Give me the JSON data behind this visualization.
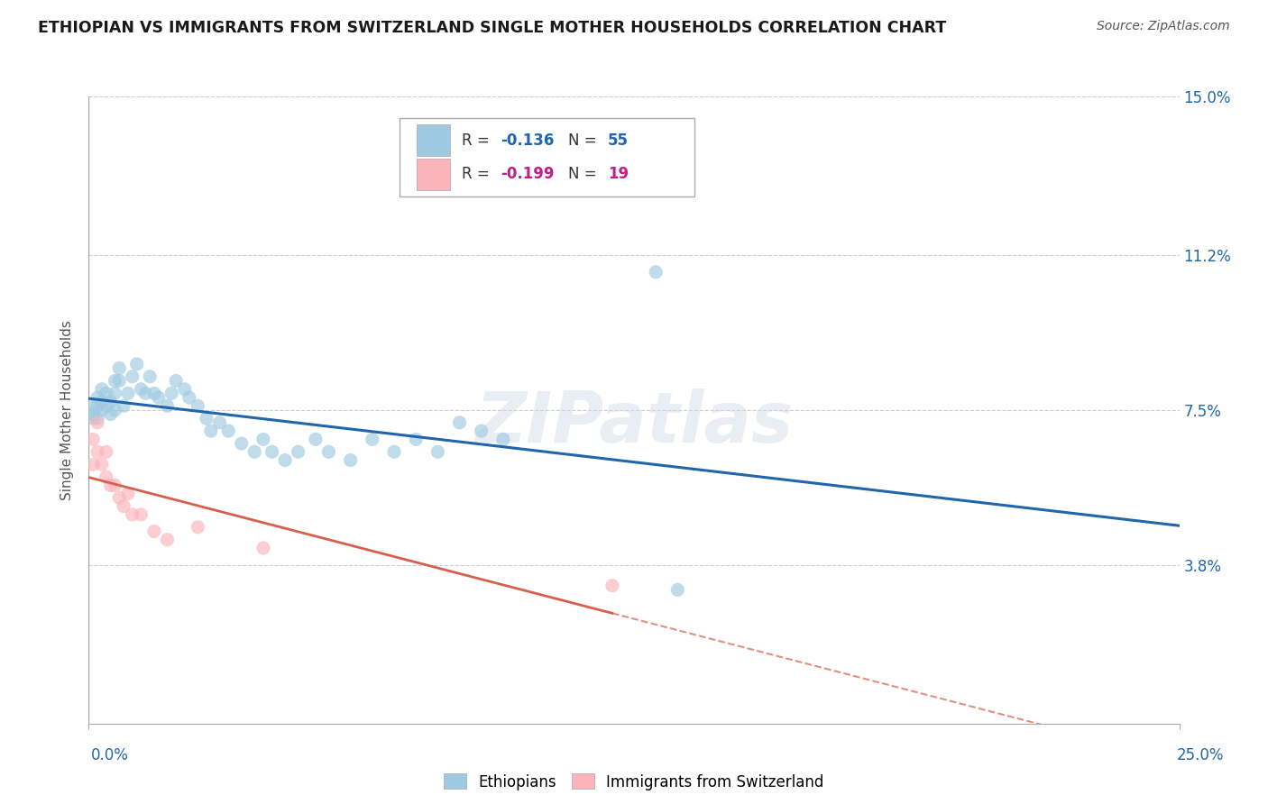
{
  "title": "ETHIOPIAN VS IMMIGRANTS FROM SWITZERLAND SINGLE MOTHER HOUSEHOLDS CORRELATION CHART",
  "source": "Source: ZipAtlas.com",
  "ylabel": "Single Mother Households",
  "xlim": [
    0.0,
    0.25
  ],
  "ylim": [
    0.0,
    0.15
  ],
  "yticks": [
    0.038,
    0.075,
    0.112,
    0.15
  ],
  "ytick_labels": [
    "3.8%",
    "7.5%",
    "11.2%",
    "15.0%"
  ],
  "color_blue": "#9ecae1",
  "color_pink": "#fbb4b9",
  "color_blue_line": "#2166ac",
  "color_pink_line": "#d6604d",
  "color_text_blue": "#2166ac",
  "color_text_pink": "#c51b8a",
  "watermark": "ZIPatlas",
  "legend_r1": "-0.136",
  "legend_n1": "55",
  "legend_r2": "-0.199",
  "legend_n2": "19",
  "ethiopian_x": [
    0.001,
    0.001,
    0.001,
    0.002,
    0.002,
    0.002,
    0.003,
    0.003,
    0.003,
    0.004,
    0.004,
    0.005,
    0.005,
    0.006,
    0.006,
    0.006,
    0.007,
    0.007,
    0.008,
    0.009,
    0.01,
    0.011,
    0.012,
    0.013,
    0.014,
    0.015,
    0.016,
    0.018,
    0.019,
    0.02,
    0.022,
    0.023,
    0.025,
    0.027,
    0.028,
    0.03,
    0.032,
    0.035,
    0.038,
    0.04,
    0.042,
    0.045,
    0.048,
    0.052,
    0.055,
    0.06,
    0.065,
    0.07,
    0.075,
    0.08,
    0.085,
    0.09,
    0.095,
    0.13,
    0.135
  ],
  "ethiopian_y": [
    0.076,
    0.074,
    0.073,
    0.078,
    0.076,
    0.073,
    0.08,
    0.077,
    0.075,
    0.079,
    0.076,
    0.077,
    0.074,
    0.082,
    0.079,
    0.075,
    0.085,
    0.082,
    0.076,
    0.079,
    0.083,
    0.086,
    0.08,
    0.079,
    0.083,
    0.079,
    0.078,
    0.076,
    0.079,
    0.082,
    0.08,
    0.078,
    0.076,
    0.073,
    0.07,
    0.072,
    0.07,
    0.067,
    0.065,
    0.068,
    0.065,
    0.063,
    0.065,
    0.068,
    0.065,
    0.063,
    0.068,
    0.065,
    0.068,
    0.065,
    0.072,
    0.07,
    0.068,
    0.108,
    0.032
  ],
  "swiss_x": [
    0.001,
    0.001,
    0.002,
    0.002,
    0.003,
    0.004,
    0.004,
    0.005,
    0.006,
    0.007,
    0.008,
    0.009,
    0.01,
    0.012,
    0.015,
    0.018,
    0.025,
    0.04,
    0.12
  ],
  "swiss_y": [
    0.068,
    0.062,
    0.072,
    0.065,
    0.062,
    0.065,
    0.059,
    0.057,
    0.057,
    0.054,
    0.052,
    0.055,
    0.05,
    0.05,
    0.046,
    0.044,
    0.047,
    0.042,
    0.033
  ]
}
